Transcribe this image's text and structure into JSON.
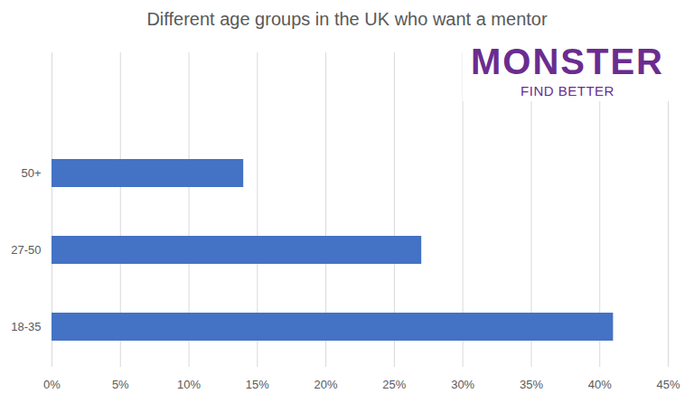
{
  "chart_data": {
    "type": "bar",
    "title": "Different age groups in the UK who want a mentor",
    "annotations": [
      "MONSTER",
      "FIND BETTER"
    ],
    "orientation": "horizontal",
    "categories": [
      "50+",
      "27-50",
      "18-35"
    ],
    "values": [
      14,
      27,
      41
    ],
    "color": "#4472c4",
    "xlim": [
      0,
      45
    ],
    "xticks": [
      {
        "value": 0,
        "label": "0%"
      },
      {
        "value": 5,
        "label": "5%"
      },
      {
        "value": 10,
        "label": "10%"
      },
      {
        "value": 15,
        "label": "15%"
      },
      {
        "value": 20,
        "label": "20%"
      },
      {
        "value": 25,
        "label": "25%"
      },
      {
        "value": 30,
        "label": "30%"
      },
      {
        "value": 35,
        "label": "35%"
      },
      {
        "value": 40,
        "label": "40%"
      },
      {
        "value": 45,
        "label": "45%"
      }
    ],
    "grid": true
  }
}
